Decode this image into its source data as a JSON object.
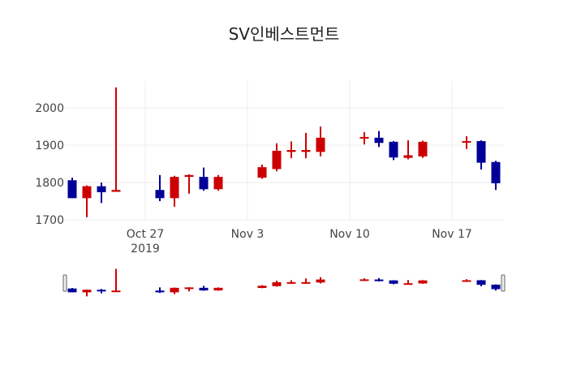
{
  "chart_data": {
    "type": "candlestick",
    "title": "SV인베스트먼트",
    "xlabel": "",
    "ylabel": "",
    "ylim": [
      1690,
      2070
    ],
    "yticks": [
      1700,
      1800,
      1900,
      2000
    ],
    "xticks": [
      {
        "date": "2019-10-27",
        "label": "Oct 27",
        "sublabel": "2019"
      },
      {
        "date": "2019-11-03",
        "label": "Nov 3"
      },
      {
        "date": "2019-11-10",
        "label": "Nov 10"
      },
      {
        "date": "2019-11-17",
        "label": "Nov 17"
      }
    ],
    "increasing_color": "#cc0000",
    "decreasing_color": "#000099",
    "grid": true,
    "rangeslider": true,
    "x": [
      "2019-10-22",
      "2019-10-23",
      "2019-10-24",
      "2019-10-25",
      "2019-10-28",
      "2019-10-29",
      "2019-10-30",
      "2019-10-31",
      "2019-11-01",
      "2019-11-04",
      "2019-11-05",
      "2019-11-06",
      "2019-11-07",
      "2019-11-08",
      "2019-11-11",
      "2019-11-12",
      "2019-11-13",
      "2019-11-14",
      "2019-11-15",
      "2019-11-18",
      "2019-11-19",
      "2019-11-20"
    ],
    "open": [
      1806,
      1758,
      1790,
      1775,
      1780,
      1758,
      1815,
      1815,
      1782,
      1813,
      1836,
      1882,
      1882,
      1882,
      1918,
      1920,
      1909,
      1866,
      1870,
      1907,
      1911,
      1855
    ],
    "high": [
      1813,
      1792,
      1800,
      2055,
      1820,
      1818,
      1822,
      1840,
      1820,
      1848,
      1905,
      1910,
      1933,
      1950,
      1935,
      1938,
      1911,
      1913,
      1912,
      1924,
      1913,
      1858
    ],
    "low": [
      1758,
      1707,
      1745,
      1775,
      1750,
      1735,
      1770,
      1778,
      1778,
      1810,
      1830,
      1865,
      1865,
      1870,
      1902,
      1895,
      1860,
      1862,
      1866,
      1890,
      1835,
      1780
    ],
    "close": [
      1758,
      1790,
      1774,
      1780,
      1758,
      1815,
      1820,
      1782,
      1815,
      1841,
      1885,
      1887,
      1887,
      1920,
      1922,
      1906,
      1867,
      1873,
      1909,
      1911,
      1853,
      1798
    ]
  }
}
